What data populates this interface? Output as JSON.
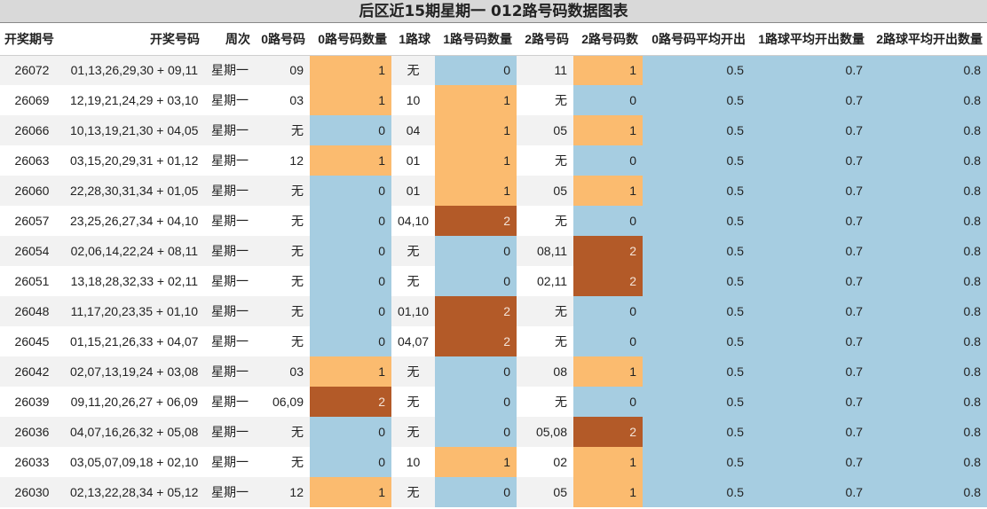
{
  "title": "后区近15期星期一 012路号码数据图表",
  "colors": {
    "count0": "#a6cde1",
    "count1": "#fbbb6f",
    "count2": "#b35a28",
    "avg": "#a6cde1",
    "stripe": "#f2f2f2"
  },
  "chart_data": {
    "type": "table",
    "columns": [
      "开奖期号",
      "开奖号码",
      "周次",
      "0路号码",
      "0路号码数量",
      "1路球",
      "1路号码数量",
      "2路号码",
      "2路号码数",
      "0路号码平均开出",
      "1路球平均开出数量",
      "2路球平均开出数量"
    ],
    "rows": [
      [
        "26072",
        "01,13,26,29,30 + 09,11",
        "星期一",
        "09",
        "1",
        "无",
        "0",
        "11",
        "1",
        "0.5",
        "0.7",
        "0.8"
      ],
      [
        "26069",
        "12,19,21,24,29 + 03,10",
        "星期一",
        "03",
        "1",
        "10",
        "1",
        "无",
        "0",
        "0.5",
        "0.7",
        "0.8"
      ],
      [
        "26066",
        "10,13,19,21,30 + 04,05",
        "星期一",
        "无",
        "0",
        "04",
        "1",
        "05",
        "1",
        "0.5",
        "0.7",
        "0.8"
      ],
      [
        "26063",
        "03,15,20,29,31 + 01,12",
        "星期一",
        "12",
        "1",
        "01",
        "1",
        "无",
        "0",
        "0.5",
        "0.7",
        "0.8"
      ],
      [
        "26060",
        "22,28,30,31,34 + 01,05",
        "星期一",
        "无",
        "0",
        "01",
        "1",
        "05",
        "1",
        "0.5",
        "0.7",
        "0.8"
      ],
      [
        "26057",
        "23,25,26,27,34 + 04,10",
        "星期一",
        "无",
        "0",
        "04,10",
        "2",
        "无",
        "0",
        "0.5",
        "0.7",
        "0.8"
      ],
      [
        "26054",
        "02,06,14,22,24 + 08,11",
        "星期一",
        "无",
        "0",
        "无",
        "0",
        "08,11",
        "2",
        "0.5",
        "0.7",
        "0.8"
      ],
      [
        "26051",
        "13,18,28,32,33 + 02,11",
        "星期一",
        "无",
        "0",
        "无",
        "0",
        "02,11",
        "2",
        "0.5",
        "0.7",
        "0.8"
      ],
      [
        "26048",
        "11,17,20,23,35 + 01,10",
        "星期一",
        "无",
        "0",
        "01,10",
        "2",
        "无",
        "0",
        "0.5",
        "0.7",
        "0.8"
      ],
      [
        "26045",
        "01,15,21,26,33 + 04,07",
        "星期一",
        "无",
        "0",
        "04,07",
        "2",
        "无",
        "0",
        "0.5",
        "0.7",
        "0.8"
      ],
      [
        "26042",
        "02,07,13,19,24 + 03,08",
        "星期一",
        "03",
        "1",
        "无",
        "0",
        "08",
        "1",
        "0.5",
        "0.7",
        "0.8"
      ],
      [
        "26039",
        "09,11,20,26,27 + 06,09",
        "星期一",
        "06,09",
        "2",
        "无",
        "0",
        "无",
        "0",
        "0.5",
        "0.7",
        "0.8"
      ],
      [
        "26036",
        "04,07,16,26,32 + 05,08",
        "星期一",
        "无",
        "0",
        "无",
        "0",
        "05,08",
        "2",
        "0.5",
        "0.7",
        "0.8"
      ],
      [
        "26033",
        "03,05,07,09,18 + 02,10",
        "星期一",
        "无",
        "0",
        "10",
        "1",
        "02",
        "1",
        "0.5",
        "0.7",
        "0.8"
      ],
      [
        "26030",
        "02,13,22,28,34 + 05,12",
        "星期一",
        "12",
        "1",
        "无",
        "0",
        "05",
        "1",
        "0.5",
        "0.7",
        "0.8"
      ]
    ]
  }
}
